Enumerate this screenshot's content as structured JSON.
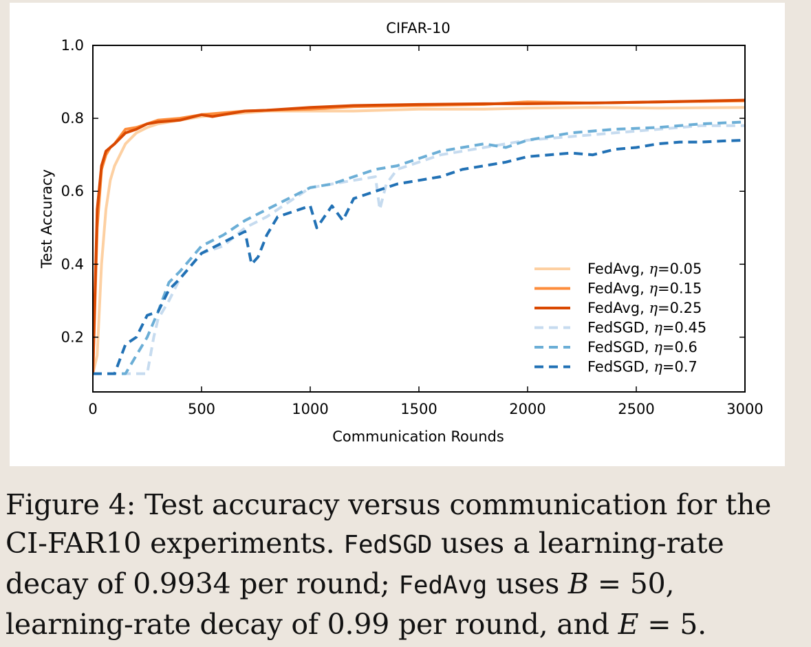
{
  "chart_data": {
    "type": "line",
    "title": "CIFAR-10",
    "xlabel": "Communication Rounds",
    "ylabel": "Test Accuracy",
    "xlim": [
      0,
      3000
    ],
    "ylim": [
      0.05,
      1.0
    ],
    "xticks": [
      0,
      500,
      1000,
      1500,
      2000,
      2500,
      3000
    ],
    "xtick_labels": [
      "0",
      "500",
      "1000",
      "1500",
      "2000",
      "2500",
      "3000"
    ],
    "yticks": [
      0.2,
      0.4,
      0.6,
      0.8,
      1.0
    ],
    "ytick_labels": [
      "0.2",
      "0.4",
      "0.6",
      "0.8",
      "1.0"
    ],
    "legend_position": "lower-right",
    "series": [
      {
        "name": "FedAvg, η=0.05",
        "legend_prefix": "FedAvg, ",
        "legend_eta": "η",
        "legend_value": "=0.05",
        "color": "#fdd0a2",
        "dash": "solid",
        "x": [
          0,
          20,
          40,
          60,
          80,
          100,
          150,
          200,
          250,
          300,
          400,
          500,
          600,
          700,
          800,
          1000,
          1200,
          1500,
          1800,
          2000,
          2300,
          2600,
          3000
        ],
        "y": [
          0.1,
          0.15,
          0.4,
          0.55,
          0.63,
          0.67,
          0.73,
          0.76,
          0.775,
          0.785,
          0.795,
          0.805,
          0.81,
          0.815,
          0.82,
          0.82,
          0.82,
          0.825,
          0.825,
          0.828,
          0.83,
          0.828,
          0.83
        ]
      },
      {
        "name": "FedAvg, η=0.15",
        "legend_prefix": "FedAvg, ",
        "legend_eta": "η",
        "legend_value": "=0.15",
        "color": "#fd8d3c",
        "dash": "solid",
        "x": [
          0,
          20,
          40,
          60,
          80,
          100,
          150,
          200,
          250,
          300,
          400,
          500,
          600,
          700,
          800,
          1000,
          1200,
          1500,
          1800,
          2000,
          2300,
          2600,
          3000
        ],
        "y": [
          0.1,
          0.5,
          0.66,
          0.7,
          0.72,
          0.73,
          0.77,
          0.775,
          0.785,
          0.795,
          0.8,
          0.81,
          0.815,
          0.82,
          0.822,
          0.825,
          0.832,
          0.835,
          0.838,
          0.845,
          0.842,
          0.845,
          0.848
        ]
      },
      {
        "name": "FedAvg, η=0.25",
        "legend_prefix": "FedAvg, ",
        "legend_eta": "η",
        "legend_value": "=0.25",
        "color": "#d94801",
        "dash": "solid",
        "x": [
          0,
          20,
          40,
          60,
          80,
          100,
          150,
          200,
          250,
          300,
          400,
          500,
          550,
          600,
          700,
          800,
          1000,
          1200,
          1500,
          1800,
          2000,
          2300,
          2600,
          3000
        ],
        "y": [
          0.1,
          0.55,
          0.67,
          0.71,
          0.72,
          0.73,
          0.76,
          0.77,
          0.785,
          0.79,
          0.795,
          0.81,
          0.805,
          0.81,
          0.82,
          0.822,
          0.83,
          0.835,
          0.838,
          0.84,
          0.84,
          0.842,
          0.845,
          0.85
        ]
      },
      {
        "name": "FedSGD, η=0.45",
        "legend_prefix": "FedSGD, ",
        "legend_eta": "η",
        "legend_value": "=0.45",
        "color": "#c6dbef",
        "dash": "dashed",
        "x": [
          0,
          100,
          200,
          250,
          280,
          300,
          350,
          400,
          500,
          600,
          700,
          800,
          900,
          1000,
          1100,
          1200,
          1300,
          1320,
          1350,
          1400,
          1500,
          1600,
          1700,
          1800,
          1900,
          2000,
          2200,
          2400,
          2600,
          2800,
          3000
        ],
        "y": [
          0.1,
          0.1,
          0.1,
          0.1,
          0.2,
          0.25,
          0.3,
          0.36,
          0.43,
          0.45,
          0.5,
          0.53,
          0.57,
          0.61,
          0.62,
          0.63,
          0.64,
          0.55,
          0.62,
          0.66,
          0.68,
          0.7,
          0.71,
          0.72,
          0.73,
          0.74,
          0.75,
          0.76,
          0.77,
          0.78,
          0.78
        ]
      },
      {
        "name": "FedSGD, η=0.6",
        "legend_prefix": "FedSGD, ",
        "legend_eta": "η",
        "legend_value": "=0.6",
        "color": "#6baed6",
        "dash": "dashed",
        "x": [
          0,
          100,
          150,
          200,
          250,
          300,
          350,
          400,
          500,
          600,
          700,
          800,
          900,
          1000,
          1100,
          1200,
          1300,
          1400,
          1500,
          1600,
          1700,
          1800,
          1900,
          2000,
          2100,
          2200,
          2400,
          2600,
          2800,
          3000
        ],
        "y": [
          0.1,
          0.1,
          0.1,
          0.15,
          0.2,
          0.27,
          0.35,
          0.38,
          0.45,
          0.48,
          0.52,
          0.55,
          0.58,
          0.61,
          0.62,
          0.64,
          0.66,
          0.67,
          0.69,
          0.71,
          0.72,
          0.73,
          0.72,
          0.74,
          0.75,
          0.76,
          0.77,
          0.775,
          0.785,
          0.79
        ]
      },
      {
        "name": "FedSGD, η=0.7",
        "legend_prefix": "FedSGD, ",
        "legend_eta": "η",
        "legend_value": "=0.7",
        "color": "#2171b5",
        "dash": "dashed",
        "x": [
          0,
          50,
          100,
          150,
          200,
          250,
          300,
          350,
          400,
          500,
          600,
          700,
          730,
          760,
          800,
          850,
          900,
          1000,
          1030,
          1100,
          1150,
          1200,
          1300,
          1400,
          1500,
          1600,
          1700,
          1800,
          1900,
          2000,
          2100,
          2200,
          2300,
          2400,
          2500,
          2600,
          2700,
          2800,
          2900,
          3000
        ],
        "y": [
          0.1,
          0.1,
          0.1,
          0.18,
          0.2,
          0.26,
          0.27,
          0.33,
          0.36,
          0.43,
          0.46,
          0.49,
          0.4,
          0.42,
          0.48,
          0.53,
          0.54,
          0.56,
          0.5,
          0.56,
          0.52,
          0.58,
          0.6,
          0.62,
          0.63,
          0.64,
          0.66,
          0.67,
          0.68,
          0.695,
          0.7,
          0.705,
          0.7,
          0.715,
          0.72,
          0.73,
          0.735,
          0.735,
          0.738,
          0.74
        ]
      }
    ]
  },
  "caption": {
    "p1": "Figure 4: Test accuracy versus communication for the CI-FAR10 experiments.",
    "fedsgd": "FedSGD",
    "p2": "uses a learning-rate decay of 0.9934 per round;",
    "fedavg": "FedAvg",
    "p3": "uses",
    "m1": "B",
    "eq1": "= 50",
    "p4": ", learning-rate decay of 0.99 per round, and",
    "m2": "E",
    "eq2": "= 5",
    "p5": "."
  }
}
